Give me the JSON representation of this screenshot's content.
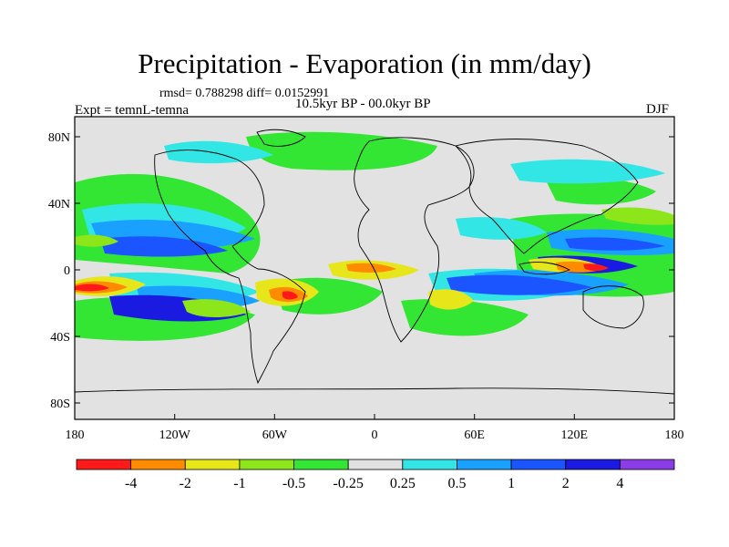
{
  "title": "Precipitation - Evaporation (in mm/day)",
  "stats": "rmsd= 0.788298 diff= 0.0152991",
  "experiment": "Expt = temnL-temna",
  "period": "10.5kyr BP - 00.0kyr BP",
  "season": "DJF",
  "lat_ticks": [
    "80N",
    "40N",
    "0",
    "40S",
    "80S"
  ],
  "lon_ticks": [
    "180",
    "120W",
    "60W",
    "0",
    "60E",
    "120E",
    "180"
  ],
  "colorbar": {
    "labels": [
      "-4",
      "-2",
      "-1",
      "-0.5",
      "-0.25",
      "0.25",
      "0.5",
      "1",
      "2",
      "4"
    ],
    "colors": [
      "#ff1a1a",
      "#ff8c00",
      "#e6e61a",
      "#8ce61a",
      "#33e633",
      "#e0e0e0",
      "#33e6e6",
      "#1aa0ff",
      "#1a55ff",
      "#1a1ae0",
      "#8c3ce6"
    ]
  },
  "palette": {
    "ocean_neutral": "#e2e2e2",
    "coast": "#000000"
  }
}
